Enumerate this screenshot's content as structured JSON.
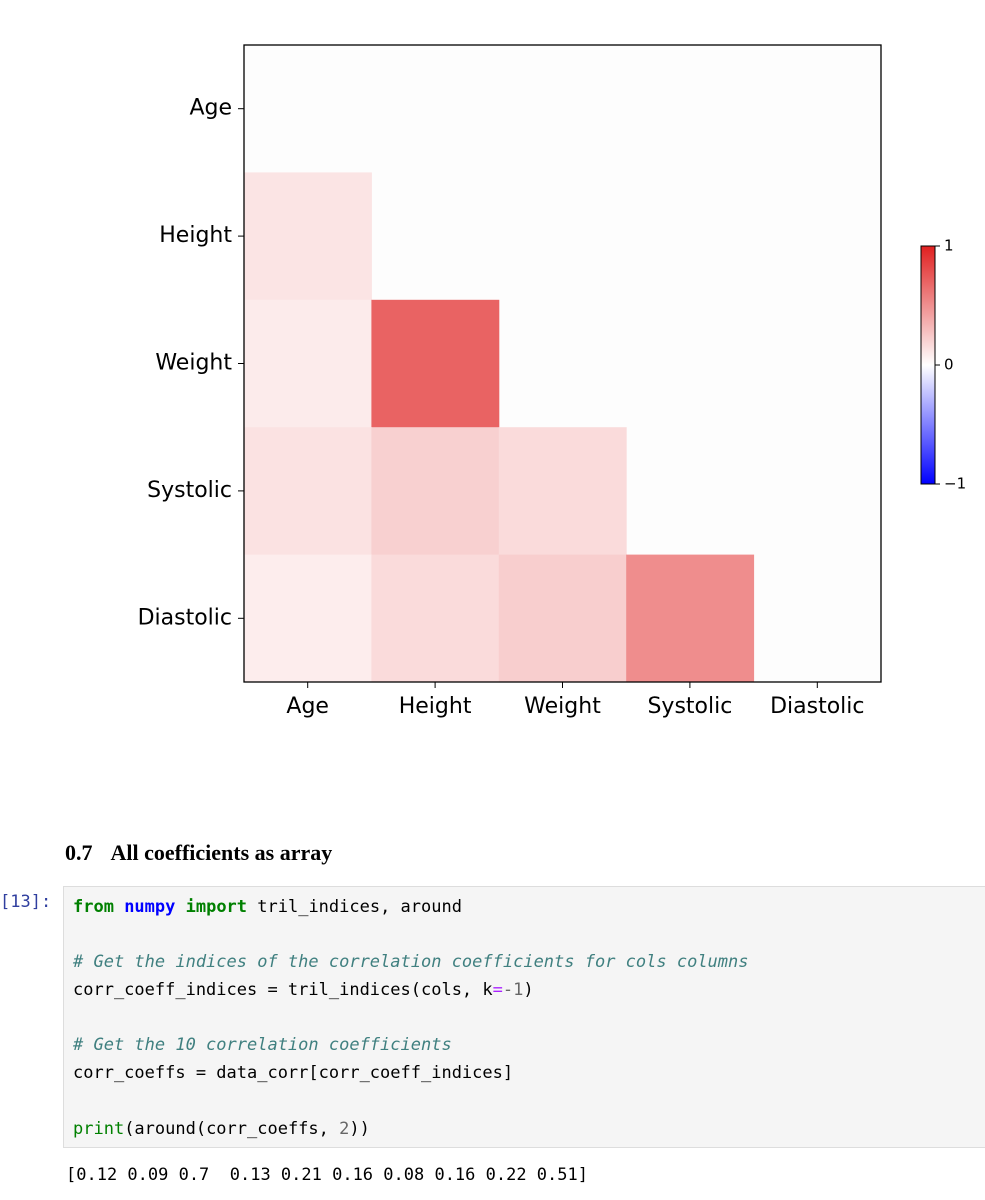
{
  "chart_data": {
    "type": "heatmap",
    "categories": [
      "Age",
      "Height",
      "Weight",
      "Systolic",
      "Diastolic"
    ],
    "values": [
      [
        null,
        null,
        null,
        null,
        null
      ],
      [
        0.12,
        null,
        null,
        null,
        null
      ],
      [
        0.09,
        0.7,
        null,
        null,
        null
      ],
      [
        0.13,
        0.21,
        0.16,
        null,
        null
      ],
      [
        0.08,
        0.16,
        0.22,
        0.51,
        null
      ]
    ],
    "cmap": [
      "#0000ff",
      "#ffffff",
      "#e02020"
    ],
    "clim": [
      -1,
      1
    ],
    "cticks": [
      1,
      0,
      {
        "value": -1,
        "label": "−1"
      }
    ]
  },
  "section": {
    "number": "0.7",
    "title": "All coefficients as array"
  },
  "cell": {
    "prompt": "[13]:",
    "lines": [
      [
        "from",
        " numpy ",
        "import",
        " tril_indices, around"
      ],
      [
        "# Get the indices of the correlation coefficients for cols columns"
      ],
      [
        "corr_coeff_indices = tril_indices(cols, k",
        "=",
        "-1",
        ")"
      ],
      [
        "# Get the 10 correlation coefficients"
      ],
      [
        "corr_coeffs = data_corr[corr_coeff_indices]"
      ],
      [
        "print",
        "(around(corr_coeffs, ",
        "2",
        "))"
      ]
    ],
    "output": "[0.12 0.09 0.7  0.13 0.21 0.16 0.08 0.16 0.22 0.51]"
  }
}
